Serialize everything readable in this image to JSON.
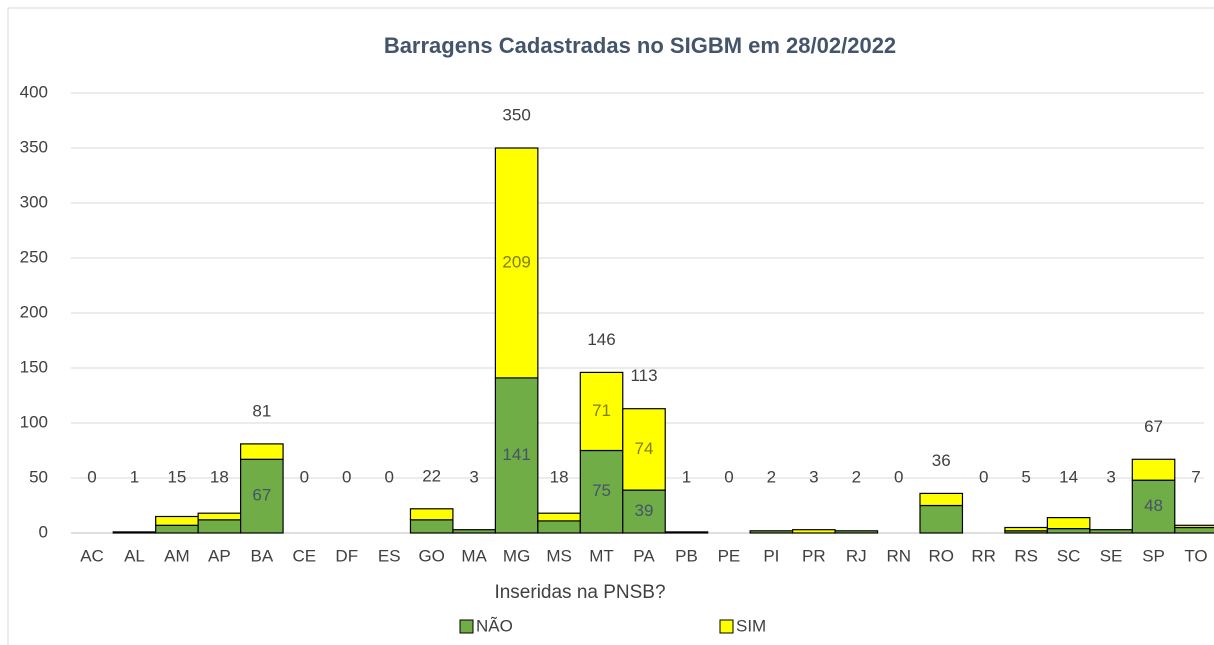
{
  "chart_data": {
    "type": "stacked_bar",
    "title": "Barragens Cadastradas no SIGBM em  28/02/2022",
    "x_label": "Inseridas na PNSB?",
    "categories": [
      "AC",
      "AL",
      "AM",
      "AP",
      "BA",
      "CE",
      "DF",
      "ES",
      "GO",
      "MA",
      "MG",
      "MS",
      "MT",
      "PA",
      "PB",
      "PE",
      "PI",
      "PR",
      "RJ",
      "RN",
      "RO",
      "RR",
      "RS",
      "SC",
      "SE",
      "SP",
      "TO"
    ],
    "series": [
      {
        "name": "NÃO",
        "color": "#70ad47",
        "values": [
          0,
          1,
          7,
          12,
          67,
          0,
          0,
          0,
          12,
          3,
          141,
          11,
          75,
          39,
          1,
          0,
          2,
          0,
          2,
          0,
          25,
          0,
          2,
          4,
          3,
          48,
          5
        ],
        "value_labels": [
          null,
          null,
          null,
          null,
          "67",
          null,
          null,
          null,
          null,
          null,
          "141",
          null,
          "75",
          "39",
          null,
          null,
          null,
          null,
          null,
          null,
          null,
          null,
          null,
          null,
          null,
          "48",
          null
        ]
      },
      {
        "name": "SIM",
        "color": "#ffff00",
        "values": [
          0,
          0,
          8,
          6,
          14,
          0,
          0,
          0,
          10,
          0,
          209,
          7,
          71,
          74,
          0,
          0,
          0,
          3,
          0,
          0,
          11,
          0,
          3,
          10,
          0,
          19,
          2
        ],
        "value_labels": [
          null,
          null,
          null,
          null,
          null,
          null,
          null,
          null,
          null,
          null,
          "209",
          null,
          "71",
          "74",
          null,
          null,
          null,
          null,
          null,
          null,
          null,
          null,
          null,
          null,
          null,
          null,
          null
        ]
      }
    ],
    "totals": [
      0,
      1,
      15,
      18,
      81,
      0,
      0,
      0,
      22,
      3,
      350,
      18,
      146,
      113,
      1,
      0,
      2,
      3,
      2,
      0,
      36,
      0,
      5,
      14,
      3,
      67,
      7
    ],
    "ylim": [
      0,
      400
    ],
    "yticks": [
      0,
      50,
      100,
      150,
      200,
      250,
      300,
      350,
      400
    ],
    "grid": true,
    "legend": "bottom"
  }
}
